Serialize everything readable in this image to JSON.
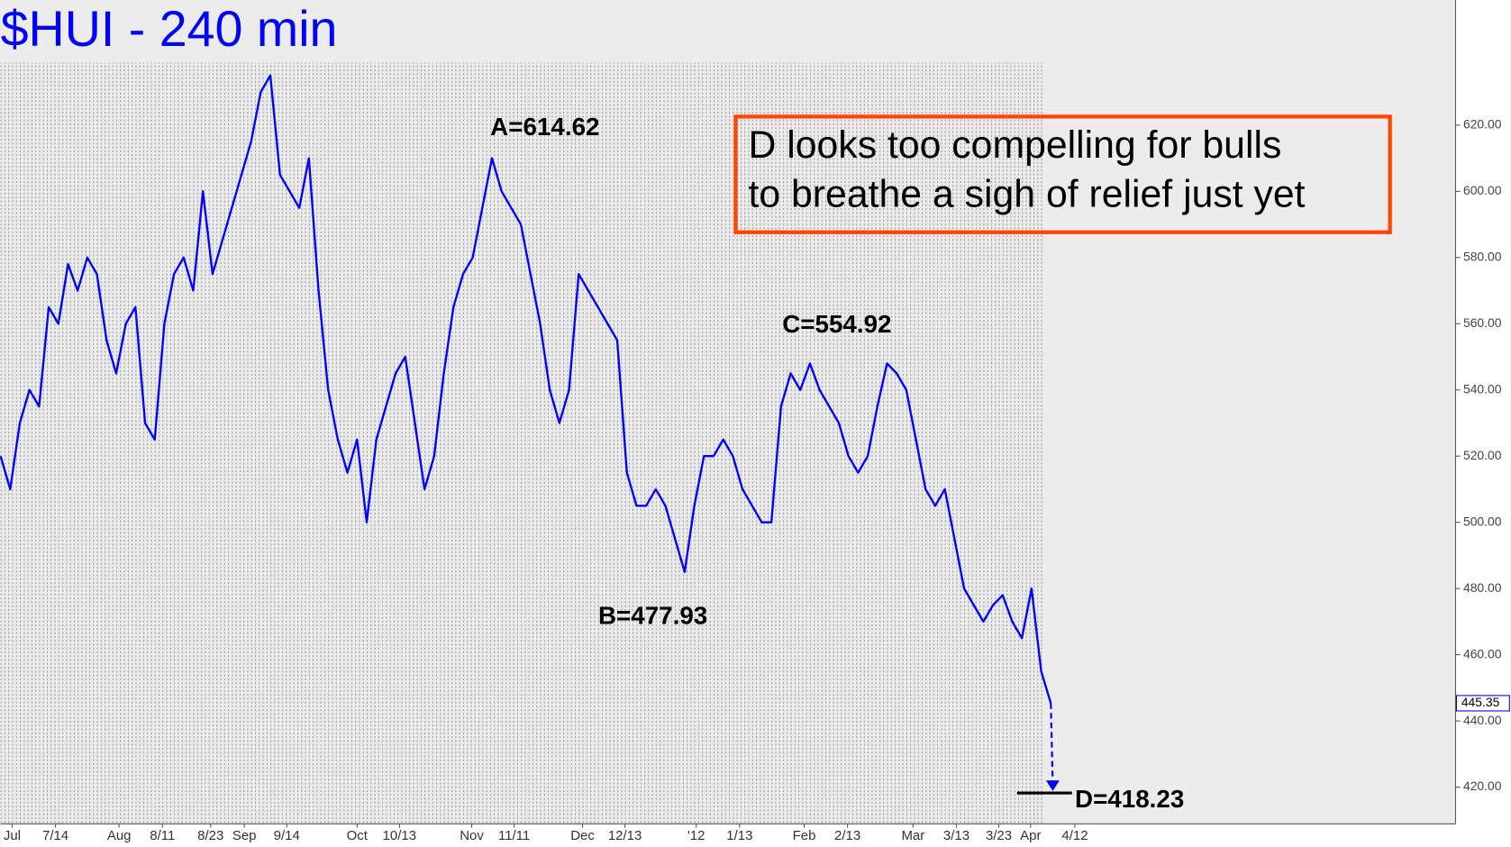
{
  "chart_data": {
    "type": "line",
    "title": "$HUI - 240 min",
    "series": [
      {
        "name": "$HUI",
        "color": "#0000ff",
        "values": [
          520,
          510,
          530,
          540,
          535,
          565,
          560,
          578,
          570,
          580,
          575,
          555,
          545,
          560,
          565,
          530,
          525,
          560,
          575,
          580,
          570,
          600,
          575,
          585,
          595,
          605,
          615,
          630,
          635,
          605,
          600,
          595,
          610,
          570,
          540,
          525,
          515,
          525,
          500,
          525,
          535,
          545,
          550,
          530,
          510,
          520,
          545,
          565,
          575,
          580,
          595,
          610,
          600,
          595,
          590,
          575,
          560,
          540,
          530,
          540,
          575,
          570,
          565,
          560,
          555,
          515,
          505,
          505,
          510,
          505,
          495,
          485,
          505,
          520,
          520,
          525,
          520,
          510,
          505,
          500,
          500,
          535,
          545,
          540,
          548,
          540,
          535,
          530,
          520,
          515,
          520,
          535,
          548,
          545,
          540,
          525,
          510,
          505,
          510,
          495,
          480,
          475,
          470,
          475,
          478,
          470,
          465,
          480,
          455,
          445.35
        ]
      }
    ],
    "last_price": 445.35,
    "xlim": [
      0,
      151
    ],
    "xticks": [
      {
        "value": 1.2,
        "label": "Jul"
      },
      {
        "value": 5.7,
        "label": "7/14"
      },
      {
        "value": 12.3,
        "label": "Aug"
      },
      {
        "value": 16.8,
        "label": "8/11"
      },
      {
        "value": 21.8,
        "label": "8/23"
      },
      {
        "value": 25.3,
        "label": "Sep"
      },
      {
        "value": 29.7,
        "label": "9/14"
      },
      {
        "value": 37,
        "label": "Oct"
      },
      {
        "value": 41.4,
        "label": "10/13"
      },
      {
        "value": 48.9,
        "label": "Nov"
      },
      {
        "value": 53.3,
        "label": "11/11"
      },
      {
        "value": 60.4,
        "label": "Dec"
      },
      {
        "value": 64.8,
        "label": "12/13"
      },
      {
        "value": 72.2,
        "label": "'12"
      },
      {
        "value": 76.7,
        "label": "1/13"
      },
      {
        "value": 83.4,
        "label": "Feb"
      },
      {
        "value": 87.9,
        "label": "2/13"
      },
      {
        "value": 94.7,
        "label": "Mar"
      },
      {
        "value": 99.2,
        "label": "3/13"
      },
      {
        "value": 103.6,
        "label": "3/23"
      },
      {
        "value": 106.9,
        "label": "Apr"
      },
      {
        "value": 111.5,
        "label": "4/12"
      }
    ],
    "ylim": [
      408.9,
      657.8
    ],
    "yticks": [
      {
        "value": 420,
        "label": "420.00"
      },
      {
        "value": 440,
        "label": "440.00"
      },
      {
        "value": 460,
        "label": "460.00"
      },
      {
        "value": 480,
        "label": "480.00"
      },
      {
        "value": 500,
        "label": "500.00"
      },
      {
        "value": 520,
        "label": "520.00"
      },
      {
        "value": 540,
        "label": "540.00"
      },
      {
        "value": 560,
        "label": "560.00"
      },
      {
        "value": 580,
        "label": "580.00"
      },
      {
        "value": 600,
        "label": "600.00"
      },
      {
        "value": 620,
        "label": "620.00"
      }
    ],
    "annotations": [
      {
        "text": "A=614.62",
        "value": 614.62
      },
      {
        "text": "B=477.93",
        "value": 477.93
      },
      {
        "text": "C=554.92",
        "value": 554.92
      },
      {
        "text": "D=418.23",
        "value": 418.23
      }
    ],
    "note_lines": [
      "D looks too compelling for bulls",
      "to breathe a sigh of relief just yet"
    ]
  }
}
